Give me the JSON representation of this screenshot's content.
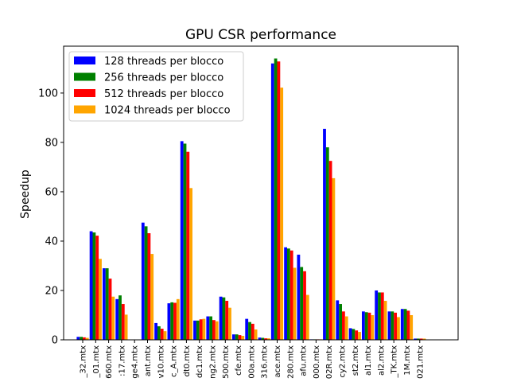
{
  "chart_data": {
    "type": "bar",
    "title": "GPU CSR performance",
    "xlabel": "",
    "ylabel": "Speedup",
    "ylim": [
      0,
      119
    ],
    "yticks": [
      0,
      20,
      40,
      60,
      80,
      100
    ],
    "grid": false,
    "legend_position": "top-left",
    "categories": [
      "_32.mtx",
      "_01.mtx",
      "660.mtx",
      ":17.mtx",
      "ge4.mtx",
      "ant.mtx",
      "v10.mtx",
      "c_A.mtx",
      "dt0.mtx",
      "dc1.mtx",
      "ng2.mtx",
      "500.mtx",
      "cfe.mtx",
      "00a.mtx",
      "316.mtx",
      "ace.mtx",
      "280.mtx",
      "afu.mtx",
      "000.mtx",
      "02R.mtx",
      "cy2.mtx",
      "st2.mtx",
      "al1.mtx",
      "al2.mtx",
      "_TK.mtx",
      "1M.mtx",
      "021.mtx"
    ],
    "series": [
      {
        "name": "128 threads per blocco",
        "color": "#0000ff",
        "values": [
          1.2,
          44,
          29,
          16.5,
          0,
          47.5,
          6.8,
          14.8,
          80.5,
          7.8,
          9.5,
          17.5,
          2.2,
          8.5,
          0.9,
          112,
          37.5,
          34.5,
          0.2,
          85.5,
          16,
          4.7,
          11.5,
          20,
          11.5,
          12.5,
          0.5
        ]
      },
      {
        "name": "256 threads per blocco",
        "color": "#008000",
        "values": [
          1.2,
          43.5,
          29,
          18,
          0,
          46,
          5.5,
          15.2,
          79.5,
          7.8,
          9.5,
          17.2,
          2.2,
          7.2,
          0.8,
          114,
          37,
          29.5,
          0.2,
          78,
          14.5,
          4.4,
          11.2,
          19.2,
          11.5,
          12.5,
          0.5
        ]
      },
      {
        "name": "512 threads per blocco",
        "color": "#ff0000",
        "values": [
          1,
          42.2,
          24.8,
          14.5,
          0,
          43.2,
          4.5,
          15,
          76.2,
          8.3,
          8,
          15.8,
          1.9,
          6.5,
          0.6,
          112.8,
          36.2,
          27.8,
          0.2,
          72.5,
          11.5,
          3.8,
          11,
          19.2,
          11,
          11.8,
          0.5
        ]
      },
      {
        "name": "1024 threads per blocco",
        "color": "#ffa500",
        "values": [
          0.8,
          32.8,
          17.5,
          10.2,
          0,
          34.8,
          3.5,
          16.5,
          61.5,
          8.5,
          7.5,
          13,
          1.6,
          4.2,
          0.6,
          102.2,
          29.2,
          18.2,
          0.2,
          65.5,
          9.5,
          3.2,
          10,
          15.8,
          9.2,
          10,
          0.5
        ]
      }
    ]
  }
}
